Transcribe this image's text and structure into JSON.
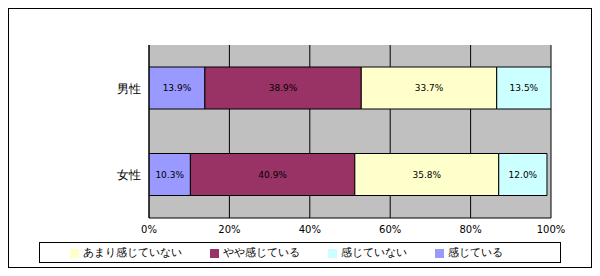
{
  "chart_data": {
    "type": "bar",
    "orientation": "horizontal",
    "stacked": true,
    "categories": [
      "男性",
      "女性"
    ],
    "series": [
      {
        "name": "感じている",
        "color": "#9999ff",
        "values": [
          13.9,
          10.3
        ],
        "value_labels": [
          "13.9%",
          "10.3%"
        ]
      },
      {
        "name": "やや感じている",
        "color": "#993366",
        "values": [
          38.9,
          40.9
        ],
        "value_labels": [
          "38.9%",
          "40.9%"
        ]
      },
      {
        "name": "あまり感じていない",
        "color": "#ffffcc",
        "values": [
          33.7,
          35.8
        ],
        "value_labels": [
          "33.7%",
          "35.8%"
        ]
      },
      {
        "name": "感じていない",
        "color": "#ccffff",
        "values": [
          13.5,
          12.0
        ],
        "value_labels": [
          "13.5%",
          "12.0%"
        ]
      }
    ],
    "xlim": [
      0,
      100
    ],
    "xticks": [
      {
        "value": 0,
        "label": "0%"
      },
      {
        "value": 20,
        "label": "20%"
      },
      {
        "value": 40,
        "label": "40%"
      },
      {
        "value": 60,
        "label": "60%"
      },
      {
        "value": 80,
        "label": "80%"
      },
      {
        "value": 100,
        "label": "100%"
      }
    ],
    "grid": true,
    "data_labels": true,
    "legend": "bottom"
  }
}
